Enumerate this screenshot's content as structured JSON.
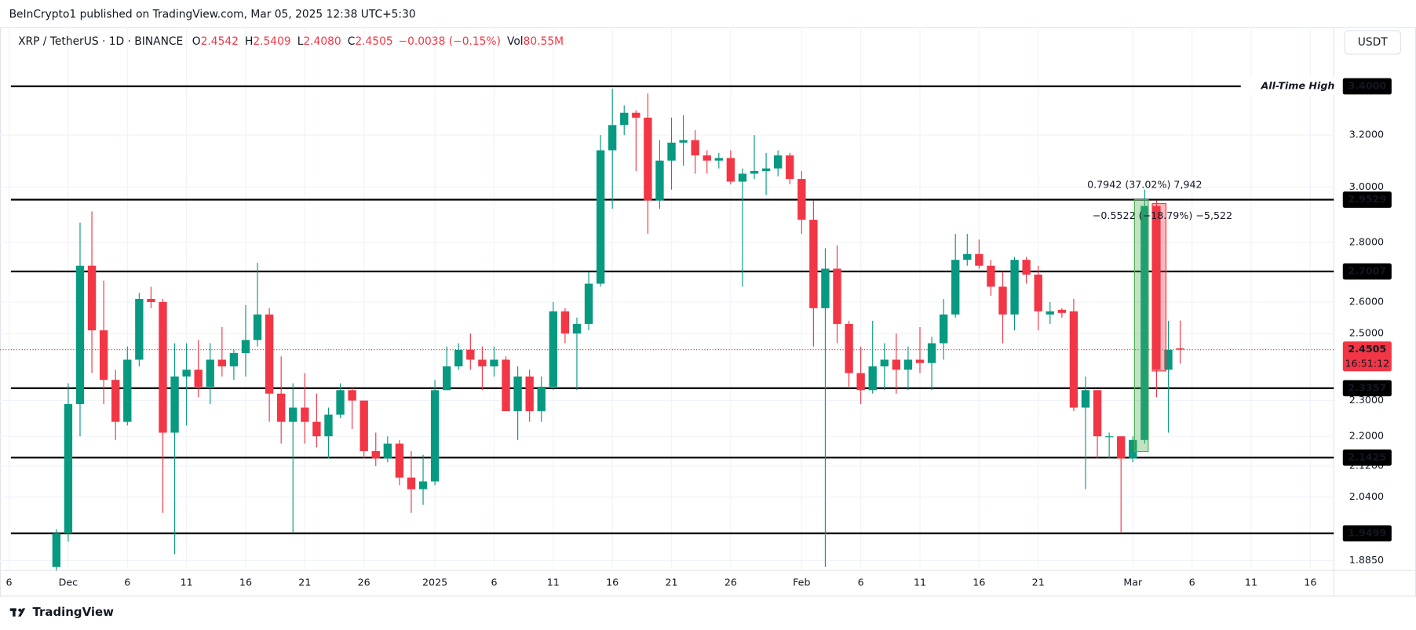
{
  "header": {
    "published": "BeInCrypto1 published on TradingView.com, Mar 05, 2025 12:38 UTC+5:30",
    "symbol": "XRP / TetherUS · 1D · BINANCE",
    "ohlc": [
      {
        "key": "O",
        "value": "2.4542"
      },
      {
        "key": "H",
        "value": "2.5409"
      },
      {
        "key": "L",
        "value": "2.4080"
      },
      {
        "key": "C",
        "value": "2.4505"
      }
    ],
    "change": "−0.0038 (−0.15%)",
    "vol_key": "Vol",
    "vol": "80.55M",
    "currency": "USDT"
  },
  "footer": {
    "brand": "TradingView"
  },
  "chart_data": {
    "type": "candlestick",
    "log_scale": true,
    "grid": true,
    "up_color": "#089981",
    "down_color": "#f23645",
    "categories": [
      "6",
      null,
      null,
      null,
      null,
      "Dec",
      null,
      null,
      null,
      null,
      "6",
      null,
      null,
      null,
      null,
      "11",
      null,
      null,
      null,
      null,
      "16",
      null,
      null,
      null,
      null,
      "21",
      null,
      null,
      null,
      null,
      "26",
      null,
      null,
      null,
      null,
      null,
      "2025",
      null,
      null,
      null,
      null,
      "6",
      null,
      null,
      null,
      null,
      "11",
      null,
      null,
      null,
      null,
      "16",
      null,
      null,
      null,
      null,
      "21",
      null,
      null,
      null,
      null,
      "26",
      null,
      null,
      null,
      null,
      null,
      "Feb",
      null,
      null,
      null,
      null,
      "6",
      null,
      null,
      null,
      null,
      "11",
      null,
      null,
      null,
      null,
      "16",
      null,
      null,
      null,
      null,
      "21",
      null,
      null,
      null,
      null,
      null,
      null,
      null,
      "Mar",
      null,
      null,
      null,
      null,
      "6",
      null,
      null,
      null,
      null,
      "11",
      null,
      null,
      null,
      null,
      "16"
    ],
    "open": [
      null,
      null,
      null,
      null,
      1.87,
      1.95,
      2.29,
      2.72,
      2.51,
      2.36,
      2.24,
      2.42,
      2.61,
      2.6,
      2.21,
      2.37,
      2.39,
      2.34,
      2.42,
      2.4,
      2.44,
      2.48,
      2.56,
      2.32,
      2.24,
      2.28,
      2.24,
      2.2,
      2.26,
      2.33,
      2.3,
      2.16,
      2.14,
      2.18,
      2.09,
      2.06,
      2.08,
      2.33,
      2.4,
      2.45,
      2.42,
      2.4,
      2.42,
      2.27,
      2.37,
      2.27,
      2.34,
      2.57,
      2.5,
      2.53,
      2.66,
      3.14,
      3.24,
      3.29,
      3.27,
      2.95,
      3.1,
      3.17,
      3.18,
      3.12,
      3.1,
      3.11,
      3.02,
      3.05,
      3.06,
      3.07,
      3.12,
      3.03,
      2.88,
      2.58,
      2.71,
      2.53,
      2.38,
      2.33,
      2.4,
      2.42,
      2.39,
      2.42,
      2.41,
      2.47,
      2.56,
      2.74,
      2.76,
      2.72,
      2.65,
      2.56,
      2.74,
      2.69,
      2.56,
      2.575,
      2.57,
      2.28,
      2.33,
      2.2,
      2.2,
      2.14,
      2.19,
      2.93,
      2.39,
      2.4542,
      null,
      null,
      null,
      null,
      null,
      null,
      null,
      null,
      null,
      null,
      null
    ],
    "high": [
      null,
      null,
      null,
      null,
      1.96,
      2.35,
      2.87,
      2.91,
      2.67,
      2.39,
      2.46,
      2.63,
      2.65,
      2.61,
      2.47,
      2.47,
      2.48,
      2.47,
      2.52,
      2.45,
      2.59,
      2.73,
      2.58,
      2.43,
      2.35,
      2.38,
      2.32,
      2.28,
      2.35,
      2.34,
      2.3,
      2.21,
      2.2,
      2.19,
      2.16,
      2.15,
      2.36,
      2.46,
      2.47,
      2.5,
      2.46,
      2.46,
      2.43,
      2.4,
      2.39,
      2.37,
      2.6,
      2.58,
      2.55,
      2.7,
      3.2,
      3.39,
      3.32,
      3.3,
      3.37,
      3.18,
      3.27,
      3.28,
      3.22,
      3.14,
      3.13,
      3.14,
      3.07,
      3.2,
      3.13,
      3.14,
      3.13,
      3.06,
      2.95,
      2.78,
      2.79,
      2.54,
      2.46,
      2.54,
      2.47,
      2.5,
      2.46,
      2.52,
      2.49,
      2.61,
      2.83,
      2.83,
      2.81,
      2.74,
      2.7,
      2.75,
      2.75,
      2.72,
      2.6,
      2.58,
      2.61,
      2.37,
      2.33,
      2.21,
      2.2,
      2.2,
      2.99,
      2.95,
      2.54,
      2.5409,
      null,
      null,
      null,
      null,
      null,
      null,
      null,
      null,
      null,
      null,
      null
    ],
    "low": [
      null,
      null,
      null,
      null,
      1.84,
      1.93,
      2.2,
      2.38,
      2.29,
      2.19,
      2.23,
      2.4,
      2.58,
      2.0,
      1.9,
      2.23,
      2.31,
      2.29,
      2.37,
      2.36,
      2.37,
      2.46,
      2.24,
      2.18,
      1.95,
      2.18,
      2.17,
      2.14,
      2.25,
      2.22,
      2.14,
      2.12,
      2.13,
      2.07,
      2.0,
      2.02,
      2.07,
      2.33,
      2.39,
      2.39,
      2.33,
      2.37,
      2.27,
      2.19,
      2.24,
      2.24,
      2.33,
      2.47,
      2.33,
      2.51,
      2.65,
      2.92,
      3.2,
      3.06,
      2.83,
      2.92,
      2.99,
      3.08,
      3.05,
      3.05,
      3.07,
      3.01,
      2.65,
      3.03,
      2.97,
      3.04,
      3.01,
      2.83,
      2.46,
      1.87,
      2.47,
      2.34,
      2.29,
      2.32,
      2.33,
      2.32,
      2.33,
      2.38,
      2.33,
      2.42,
      2.55,
      2.72,
      2.71,
      2.62,
      2.47,
      2.51,
      2.66,
      2.51,
      2.53,
      2.55,
      2.27,
      2.06,
      2.14,
      2.14,
      1.95,
      2.13,
      2.18,
      2.31,
      2.21,
      2.408,
      null,
      null,
      null,
      null,
      null,
      null,
      null,
      null,
      null,
      null,
      null
    ],
    "close": [
      null,
      null,
      null,
      null,
      1.95,
      2.29,
      2.72,
      2.51,
      2.36,
      2.24,
      2.42,
      2.61,
      2.6,
      2.21,
      2.37,
      2.39,
      2.34,
      2.42,
      2.4,
      2.44,
      2.48,
      2.56,
      2.32,
      2.24,
      2.28,
      2.24,
      2.2,
      2.26,
      2.33,
      2.3,
      2.16,
      2.14,
      2.18,
      2.09,
      2.06,
      2.08,
      2.33,
      2.4,
      2.45,
      2.42,
      2.4,
      2.42,
      2.27,
      2.37,
      2.27,
      2.34,
      2.57,
      2.5,
      2.53,
      2.66,
      3.14,
      3.24,
      3.29,
      3.27,
      2.95,
      3.1,
      3.17,
      3.18,
      3.12,
      3.1,
      3.11,
      3.02,
      3.05,
      3.06,
      3.07,
      3.12,
      3.03,
      2.88,
      2.58,
      2.71,
      2.53,
      2.38,
      2.33,
      2.4,
      2.42,
      2.39,
      2.42,
      2.41,
      2.47,
      2.56,
      2.74,
      2.76,
      2.72,
      2.65,
      2.56,
      2.74,
      2.69,
      2.57,
      2.57,
      2.565,
      2.28,
      2.33,
      2.2,
      2.2,
      2.14,
      2.19,
      2.93,
      2.39,
      2.45,
      2.4505,
      null,
      null,
      null,
      null,
      null,
      null,
      null,
      null,
      null,
      null,
      null
    ],
    "ylim": [
      1.862,
      3.66
    ],
    "yticks": [
      {
        "value": 1.885,
        "label": "1.8850"
      },
      {
        "value": 2.04,
        "label": "2.0400"
      },
      {
        "value": 2.12,
        "label": "2.1200"
      },
      {
        "value": 2.2,
        "label": "2.2000"
      },
      {
        "value": 2.3,
        "label": "2.3000"
      },
      {
        "value": 2.5,
        "label": "2.5000"
      },
      {
        "value": 2.6,
        "label": "2.6000"
      },
      {
        "value": 2.8,
        "label": "2.8000"
      },
      {
        "value": 3.0,
        "label": "3.0000"
      },
      {
        "value": 3.2,
        "label": "3.2000"
      }
    ],
    "levels": [
      {
        "value": 3.4,
        "label": "3.4000",
        "note": "All-Time High"
      },
      {
        "value": 2.9529,
        "label": "2.9529"
      },
      {
        "value": 2.7007,
        "label": "2.7007"
      },
      {
        "value": 2.3357,
        "label": "2.3357"
      },
      {
        "value": 2.1425,
        "label": "2.1425"
      },
      {
        "value": 1.9499,
        "label": "1.9499"
      }
    ],
    "last_price": {
      "value": 2.4505,
      "label": "2.4505",
      "countdown": "16:51:12"
    },
    "measures": [
      {
        "label": "0.7942 (37.02%) 7,942",
        "from": 2.1587,
        "to": 2.9529,
        "color": "#4caf50"
      },
      {
        "label": "−0.5522 (−18.79%) −5,522",
        "from": 2.9385,
        "to": 2.3863,
        "color": "#f23645"
      }
    ]
  }
}
